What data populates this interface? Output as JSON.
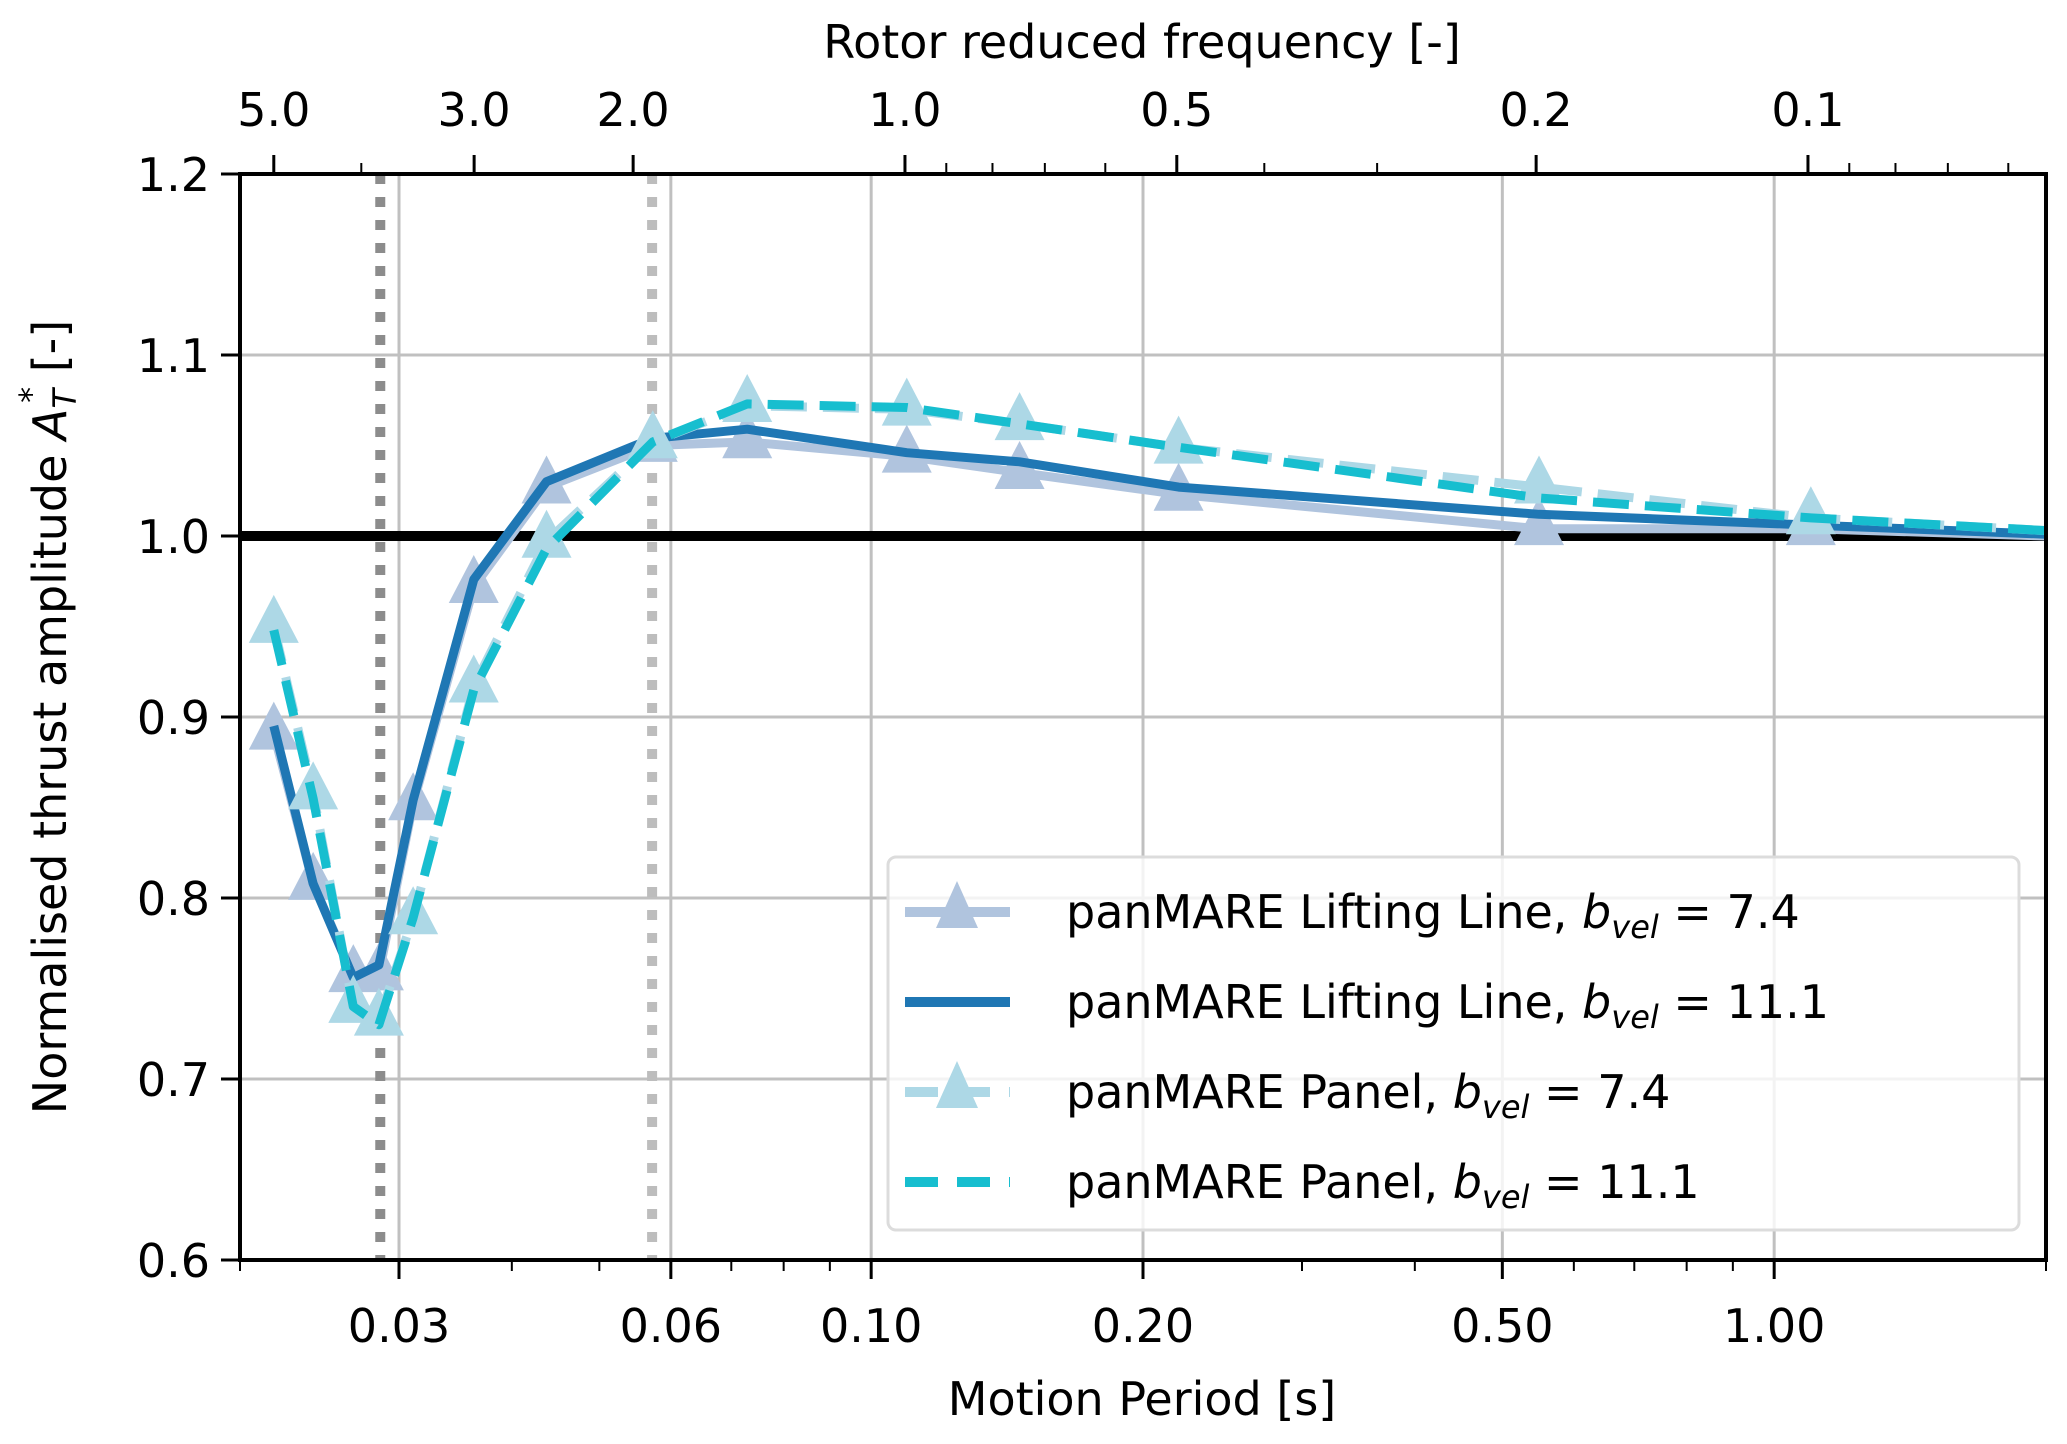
{
  "chart_data": {
    "type": "line",
    "title": "",
    "xlabel": "Motion Period [s]",
    "ylabel": "Normalised thrust amplitude A_T^* [-]",
    "ylabel_parts": {
      "main": "Normalised thrust amplitude ",
      "symbol": "A",
      "sub": "T",
      "sup": "*",
      "unit": " [-]"
    },
    "x_scale": "log",
    "xlim": [
      0.02,
      2.0
    ],
    "ylim": [
      0.6,
      1.2
    ],
    "grid": true,
    "xticks": [
      0.03,
      0.06,
      0.1,
      0.2,
      0.5,
      1.0
    ],
    "xtick_labels": [
      "0.03",
      "0.06",
      "0.10",
      "0.20",
      "0.50",
      "1.00"
    ],
    "yticks": [
      0.6,
      0.7,
      0.8,
      0.9,
      1.0,
      1.1,
      1.2
    ],
    "ytick_labels": [
      "0.6",
      "0.7",
      "0.8",
      "0.9",
      "1.0",
      "1.1",
      "1.2"
    ],
    "secondary_xaxis": {
      "label": "Rotor reduced frequency [-]",
      "relation": "k = 0.109 / T",
      "constant": 0.109,
      "ticks": [
        5.0,
        3.0,
        2.0,
        1.0,
        0.5,
        0.2,
        0.1
      ],
      "tick_labels": [
        "5.0",
        "3.0",
        "2.0",
        "1.0",
        "0.5",
        "0.2",
        "0.1"
      ]
    },
    "reference_line": {
      "y": 1.0,
      "color": "#000000"
    },
    "vertical_markers": [
      {
        "x": 0.0286,
        "color": "#8c8c8c",
        "style": "dotted"
      },
      {
        "x": 0.0572,
        "color": "#bdbdbd",
        "style": "dotted"
      }
    ],
    "x": [
      0.0218,
      0.0241,
      0.0267,
      0.0285,
      0.0311,
      0.0363,
      0.0437,
      0.0573,
      0.0729,
      0.1095,
      0.146,
      0.219,
      0.549,
      1.098,
      2.0
    ],
    "series": [
      {
        "name": "panMARE Lifting Line, b_vel = 7.4",
        "label_main": "panMARE Lifting Line, ",
        "label_value": " = 7.4",
        "color": "#b0c4de",
        "style": "solid",
        "marker": "triangle",
        "values": [
          0.891,
          0.808,
          0.757,
          0.758,
          0.852,
          0.972,
          1.027,
          1.05,
          1.052,
          1.044,
          1.035,
          1.023,
          1.004,
          1.004,
          1.0
        ]
      },
      {
        "name": "panMARE Lifting Line, b_vel = 11.1",
        "label_main": "panMARE Lifting Line, ",
        "label_value": " = 11.1",
        "color": "#1f77b4",
        "style": "solid",
        "marker": "none",
        "values": [
          0.895,
          0.808,
          0.756,
          0.763,
          0.854,
          0.976,
          1.03,
          1.054,
          1.059,
          1.046,
          1.041,
          1.027,
          1.012,
          1.006,
          1.001
        ]
      },
      {
        "name": "panMARE Panel, b_vel = 7.4",
        "label_main": "panMARE Panel, ",
        "label_value": " = 7.4",
        "color": "#add8e6",
        "style": "dashed",
        "marker": "triangle",
        "values": [
          0.95,
          0.858,
          0.74,
          0.733,
          0.789,
          0.917,
          0.997,
          1.052,
          1.072,
          1.07,
          1.062,
          1.049,
          1.027,
          1.01,
          1.003
        ]
      },
      {
        "name": "panMARE Panel, b_vel = 11.1",
        "label_main": "panMARE Panel, ",
        "label_value": " = 11.1",
        "color": "#17becf",
        "style": "dashed",
        "marker": "none",
        "values": [
          0.948,
          0.855,
          0.74,
          0.73,
          0.789,
          0.915,
          0.993,
          1.052,
          1.073,
          1.071,
          1.062,
          1.049,
          1.021,
          1.01,
          1.003
        ]
      }
    ],
    "legend": {
      "placement": "lower-right",
      "symbol": "b",
      "subscript": "vel"
    }
  }
}
